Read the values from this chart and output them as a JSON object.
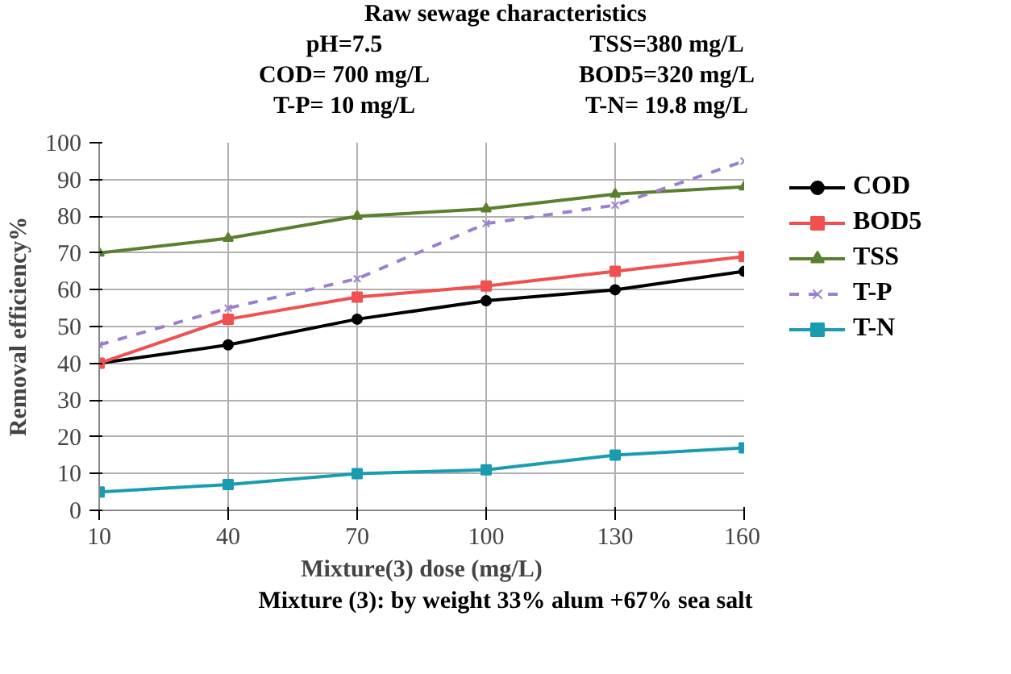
{
  "chart_data": {
    "type": "line",
    "title": "Raw sewage characteristics",
    "annotations": [
      "pH=7.5",
      "TSS=380 mg/L",
      "COD= 700 mg/L",
      "BOD5=320 mg/L",
      "T-P= 10 mg/L",
      "T-N= 19.8 mg/L",
      "Mixture (3): by weight 33% alum +67% sea salt"
    ],
    "xlabel": "Mixture(3) dose (mg/L)",
    "ylabel": "Removal efficiency%",
    "categories": [
      "10",
      "40",
      "70",
      "100",
      "130",
      "160"
    ],
    "ylim": [
      0,
      100
    ],
    "yticks": [
      0,
      10,
      20,
      30,
      40,
      50,
      60,
      70,
      80,
      90,
      100
    ],
    "grid": true,
    "legend": "right",
    "series": [
      {
        "name": "COD",
        "color": "#000000",
        "marker": "circle",
        "line_style": "solid",
        "values": [
          40,
          45,
          52,
          57,
          60,
          65
        ]
      },
      {
        "name": "BOD5",
        "color": "#f0504f",
        "marker": "square",
        "line_style": "solid",
        "values": [
          40,
          52,
          58,
          61,
          65,
          69
        ]
      },
      {
        "name": "TSS",
        "color": "#5a7f2e",
        "marker": "triangle",
        "line_style": "solid",
        "values": [
          70,
          74,
          80,
          82,
          86,
          88
        ]
      },
      {
        "name": "T-P",
        "color": "#9b7fd0",
        "marker": "cross",
        "line_style": "dashed",
        "values": [
          45,
          55,
          63,
          78,
          83,
          95
        ]
      },
      {
        "name": "T-N",
        "color": "#1a9cb0",
        "marker": "square",
        "line_style": "solid",
        "values": [
          5,
          7,
          10,
          11,
          15,
          17
        ]
      }
    ]
  }
}
